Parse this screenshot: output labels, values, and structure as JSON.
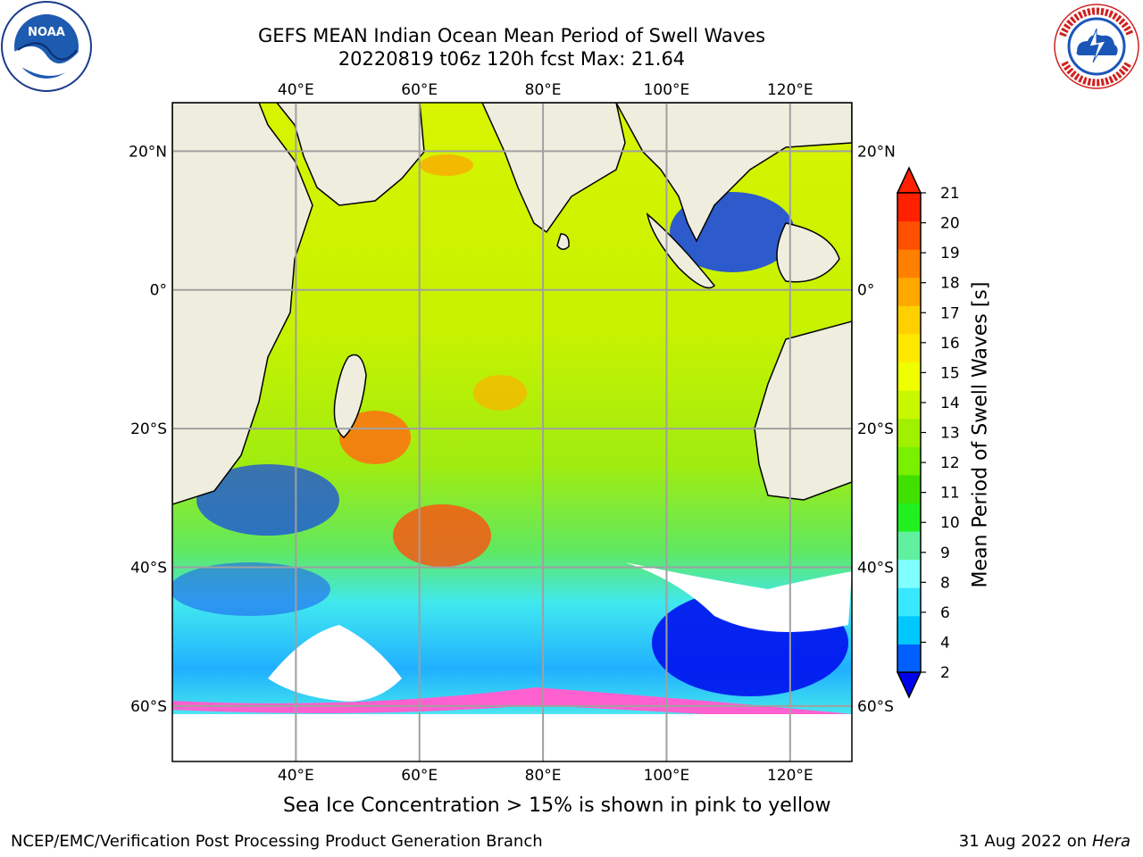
{
  "title": {
    "line1": "GEFS MEAN Indian Ocean Mean Period of Swell Waves",
    "line2": "20220819 t06z 120h fcst   Max: 21.64"
  },
  "map": {
    "lon_ticks_top": [
      "40°E",
      "60°E",
      "80°E",
      "100°E",
      "120°E"
    ],
    "lon_ticks_bottom": [
      "40°E",
      "60°E",
      "80°E",
      "100°E",
      "120°E"
    ],
    "lat_ticks_left": [
      "20°N",
      "0°",
      "20°S",
      "40°S",
      "60°S"
    ],
    "lat_ticks_right": [
      "20°N",
      "0°",
      "20°S",
      "40°S",
      "60°S"
    ],
    "lon_values": [
      40,
      60,
      80,
      100,
      120
    ],
    "lat_values": [
      20,
      0,
      -20,
      -40,
      -60
    ],
    "lon_range": [
      20,
      130
    ],
    "lat_range": [
      -68,
      27
    ],
    "grid": true,
    "land_color": "#efedde",
    "ocean_no_data_color": "#ffffff"
  },
  "colorbar": {
    "title": "Mean Period of Swell Waves [s]",
    "labels": [
      "2",
      "4",
      "6",
      "8",
      "9",
      "10",
      "11",
      "12",
      "13",
      "14",
      "15",
      "16",
      "17",
      "18",
      "19",
      "20",
      "21"
    ],
    "colors": [
      "#0060ff",
      "#00c8ff",
      "#38e8ff",
      "#80ffff",
      "#60f0a0",
      "#20f020",
      "#40e000",
      "#78f000",
      "#a0f000",
      "#c8f800",
      "#f0ff00",
      "#ffe800",
      "#ffd000",
      "#ffa800",
      "#ff8000",
      "#ff5000",
      "#ff2000"
    ],
    "extend_low_color": "#0000f0",
    "extend_high_color": "#ff2000"
  },
  "caption": "Sea Ice Concentration > 15% is shown in pink to yellow",
  "footer": {
    "left": "NCEP/EMC/Verification Post Processing Product Generation Branch",
    "right_date": "31 Aug 2022 on",
    "right_host": "Hera"
  },
  "logos": {
    "left": "noaa-logo",
    "right": "nws-logo"
  }
}
